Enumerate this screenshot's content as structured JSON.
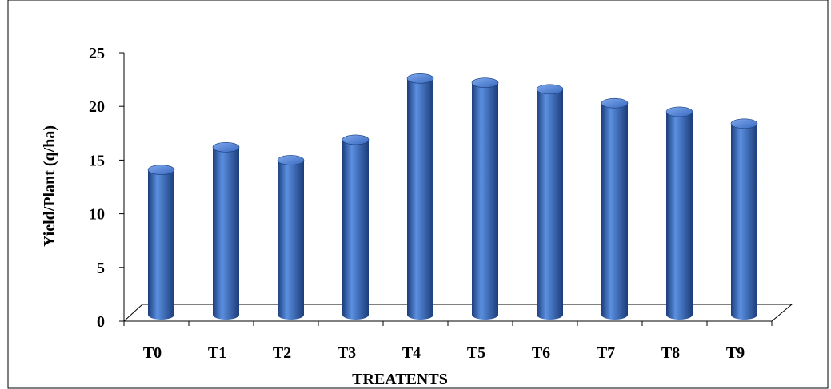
{
  "chart_data": {
    "type": "bar",
    "title": "",
    "xlabel": "TREATENTS",
    "ylabel": "Yield/Plant (q/ha)",
    "categories": [
      "T0",
      "T1",
      "T2",
      "T3",
      "T4",
      "T5",
      "T6",
      "T7",
      "T8",
      "T9"
    ],
    "values": [
      13.5,
      15.6,
      14.4,
      16.3,
      22.0,
      21.6,
      21.0,
      19.7,
      18.9,
      17.8
    ],
    "ylim": [
      0,
      25
    ],
    "yticks": [
      "0",
      "5",
      "10",
      "15",
      "20",
      "25"
    ],
    "grid": false,
    "legend": "none",
    "bar_color": "#2f5fb3",
    "bar_highlight": "#5b8fe0",
    "bar_shadow": "#1b3d7a"
  }
}
